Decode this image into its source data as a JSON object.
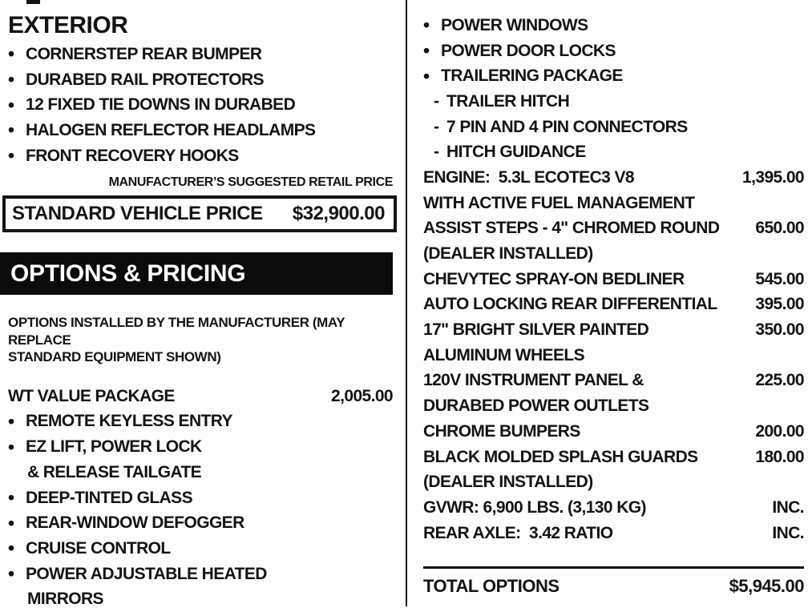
{
  "colors": {
    "ink": "#141414",
    "paper": "#fdfdfd",
    "bar_bg": "#0b0b0b",
    "bar_text": "#ffffff"
  },
  "left": {
    "exterior_title": "EXTERIOR",
    "exterior_items": [
      {
        "type": "bullet",
        "text": "CORNERSTEP REAR BUMPER",
        "price": ""
      },
      {
        "type": "bullet",
        "text": "DURABED RAIL PROTECTORS",
        "price": ""
      },
      {
        "type": "bullet",
        "text": "12 FIXED TIE DOWNS IN DURABED",
        "price": ""
      },
      {
        "type": "bullet",
        "text": "HALOGEN REFLECTOR HEADLAMPS",
        "price": ""
      },
      {
        "type": "bullet",
        "text": "FRONT RECOVERY HOOKS",
        "price": ""
      }
    ],
    "msrp_note": "MANUFACTURER’S SUGGESTED RETAIL PRICE",
    "standard_price": {
      "label": "STANDARD VEHICLE PRICE",
      "value": "$32,900.00"
    },
    "options_header": "OPTIONS & PRICING",
    "options_note": [
      "OPTIONS INSTALLED BY THE MANUFACTURER (MAY REPLACE",
      "STANDARD EQUIPMENT SHOWN)"
    ],
    "package_lines": [
      {
        "type": "plain",
        "text": "WT VALUE PACKAGE",
        "price": "2,005.00"
      },
      {
        "type": "bullet",
        "text": "REMOTE KEYLESS ENTRY",
        "price": ""
      },
      {
        "type": "bullet",
        "text": "EZ LIFT, POWER LOCK",
        "price": ""
      },
      {
        "type": "cont",
        "text": "& RELEASE TAILGATE",
        "price": ""
      },
      {
        "type": "bullet",
        "text": "DEEP-TINTED GLASS",
        "price": ""
      },
      {
        "type": "bullet",
        "text": "REAR-WINDOW DEFOGGER",
        "price": ""
      },
      {
        "type": "bullet",
        "text": "CRUISE CONTROL",
        "price": ""
      },
      {
        "type": "bullet",
        "text": "POWER ADJUSTABLE HEATED",
        "price": ""
      },
      {
        "type": "cont",
        "text": "MIRRORS",
        "price": ""
      }
    ]
  },
  "right": {
    "option_lines": [
      {
        "type": "bullet",
        "text": "POWER WINDOWS",
        "price": ""
      },
      {
        "type": "bullet",
        "text": "POWER DOOR LOCKS",
        "price": ""
      },
      {
        "type": "bullet",
        "text": "TRAILERING PACKAGE",
        "price": ""
      },
      {
        "type": "dash",
        "text": "TRAILER HITCH",
        "price": ""
      },
      {
        "type": "dash",
        "text": "7 PIN AND 4 PIN CONNECTORS",
        "price": ""
      },
      {
        "type": "dash",
        "text": "HITCH GUIDANCE",
        "price": ""
      },
      {
        "type": "plain",
        "text": "ENGINE:  5.3L ECOTEC3 V8",
        "price": "1,395.00"
      },
      {
        "type": "plain",
        "text": "WITH ACTIVE FUEL MANAGEMENT",
        "price": ""
      },
      {
        "type": "plain",
        "text": "ASSIST STEPS - 4\" CHROMED ROUND",
        "price": "650.00"
      },
      {
        "type": "plain",
        "text": "(DEALER INSTALLED)",
        "price": ""
      },
      {
        "type": "plain",
        "text": "CHEVYTEC SPRAY-ON BEDLINER",
        "price": "545.00"
      },
      {
        "type": "plain",
        "text": "AUTO LOCKING REAR DIFFERENTIAL",
        "price": "395.00"
      },
      {
        "type": "plain",
        "text": "17\" BRIGHT SILVER PAINTED",
        "price": "350.00"
      },
      {
        "type": "plain",
        "text": "ALUMINUM WHEELS",
        "price": ""
      },
      {
        "type": "plain",
        "text": "120V INSTRUMENT PANEL &",
        "price": "225.00"
      },
      {
        "type": "plain",
        "text": "DURABED POWER OUTLETS",
        "price": ""
      },
      {
        "type": "plain",
        "text": "CHROME BUMPERS",
        "price": "200.00"
      },
      {
        "type": "plain",
        "text": "BLACK MOLDED SPLASH GUARDS",
        "price": "180.00"
      },
      {
        "type": "plain",
        "text": "(DEALER INSTALLED)",
        "price": ""
      },
      {
        "type": "plain",
        "text": "GVWR: 6,900 LBS. (3,130 KG)",
        "price": "INC."
      },
      {
        "type": "plain",
        "text": "REAR AXLE:  3.42 RATIO",
        "price": "INC."
      }
    ],
    "total": {
      "label": "TOTAL OPTIONS",
      "value": "$5,945.00"
    }
  }
}
